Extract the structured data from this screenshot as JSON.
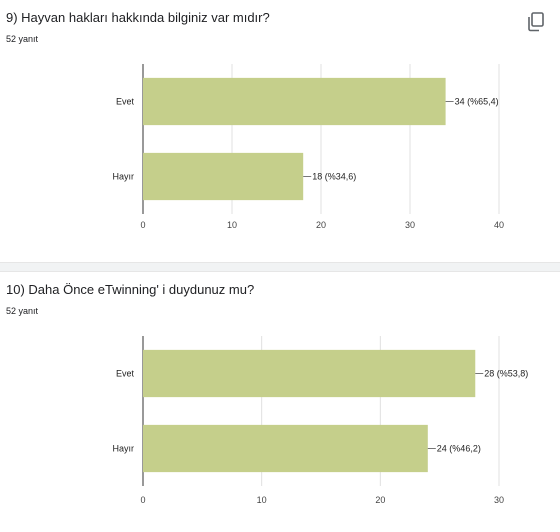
{
  "copy_icon": "copy-icon",
  "chart_data": [
    {
      "type": "bar",
      "orientation": "horizontal",
      "title": "9) Hayvan hakları hakkında bilginiz var mıdır?",
      "response_count": "52 yanıt",
      "categories": [
        "Evet",
        "Hayır"
      ],
      "values": [
        34,
        18
      ],
      "data_labels": [
        "34 (%65,4)",
        "18 (%34,6)"
      ],
      "xlim": [
        0,
        40
      ],
      "xticks": [
        "0",
        "10",
        "20",
        "30",
        "40"
      ],
      "xtick_values": [
        0,
        10,
        20,
        30,
        40
      ],
      "bar_color": "#c5cf8b",
      "grid": true
    },
    {
      "type": "bar",
      "orientation": "horizontal",
      "title": "10) Daha Önce eTwinning' i duydunuz mu?",
      "response_count": "52 yanıt",
      "categories": [
        "Evet",
        "Hayır"
      ],
      "values": [
        28,
        24
      ],
      "data_labels": [
        "28 (%53,8)",
        "24 (%46,2)"
      ],
      "xlim": [
        0,
        30
      ],
      "xticks": [
        "0",
        "10",
        "20",
        "30"
      ],
      "xtick_values": [
        0,
        10,
        20,
        30
      ],
      "bar_color": "#c5cf8b",
      "grid": true
    }
  ]
}
